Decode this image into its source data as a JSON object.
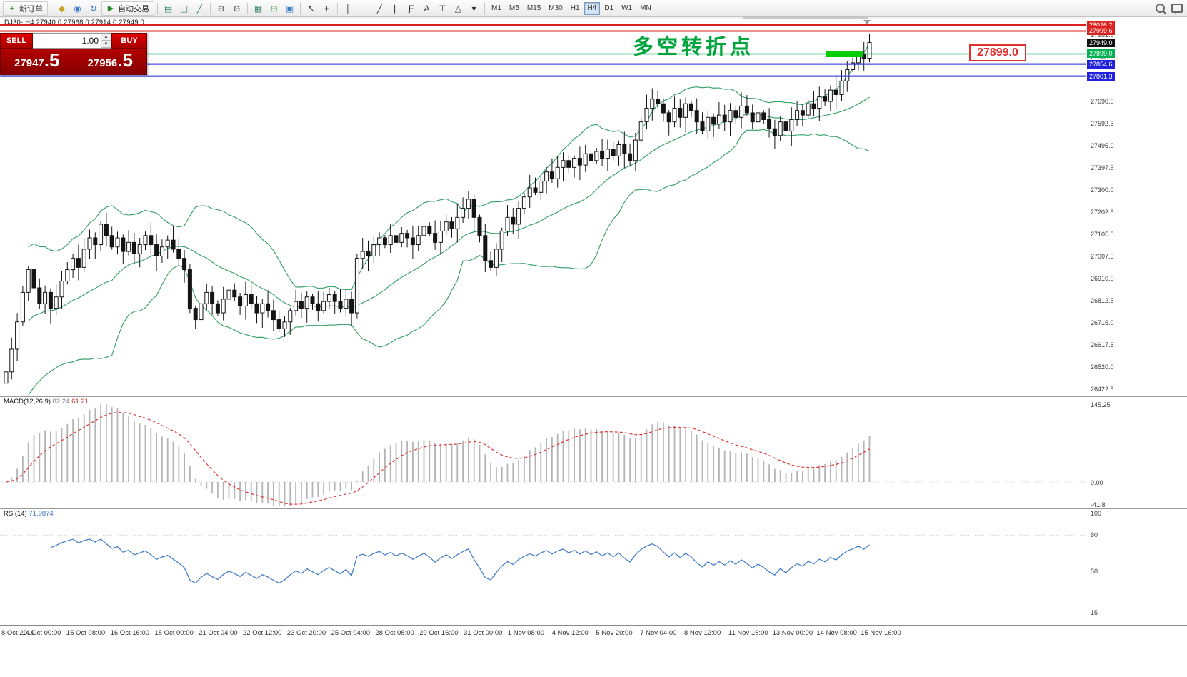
{
  "toolbar": {
    "items": [
      {
        "t": "btn",
        "name": "new-order-button",
        "label": "新订单",
        "icon_name": "new-order-icon",
        "glyph": "+",
        "glyph_color": "#1f8a1f"
      },
      {
        "t": "sep"
      },
      {
        "t": "icon",
        "name": "mql5-market-icon",
        "glyph": "◆",
        "color": "#c9a227"
      },
      {
        "t": "icon",
        "name": "community-icon",
        "glyph": "◉",
        "color": "#3a78c9"
      },
      {
        "t": "icon",
        "name": "refresh-icon",
        "glyph": "↻",
        "color": "#3a78c9"
      },
      {
        "t": "btn",
        "name": "autotrading-button",
        "label": "自动交易",
        "icon_name": "autotrading-play-icon",
        "glyph": "▶",
        "glyph_color": "#1f8a1f"
      },
      {
        "t": "sep"
      },
      {
        "t": "icon",
        "name": "bar-chart-icon",
        "glyph": "▤",
        "color": "#2a7f62"
      },
      {
        "t": "icon",
        "name": "candlestick-chart-icon",
        "glyph": "◫",
        "color": "#2a7f62"
      },
      {
        "t": "icon",
        "name": "line-chart-icon",
        "glyph": "╱",
        "color": "#2a7f62"
      },
      {
        "t": "sep"
      },
      {
        "t": "icon",
        "name": "zoom-in-icon",
        "glyph": "⊕",
        "color": "#333333"
      },
      {
        "t": "icon",
        "name": "zoom-out-icon",
        "glyph": "⊖",
        "color": "#333333"
      },
      {
        "t": "sep"
      },
      {
        "t": "icon",
        "name": "tile-windows-icon",
        "glyph": "▦",
        "color": "#2a7f62"
      },
      {
        "t": "icon",
        "name": "indicators-icon",
        "glyph": "⊞",
        "color": "#1f8a1f"
      },
      {
        "t": "icon",
        "name": "templates-icon",
        "glyph": "▣",
        "color": "#3a78c9"
      },
      {
        "t": "sep"
      },
      {
        "t": "icon",
        "name": "cursor-icon",
        "glyph": "↖",
        "color": "#333333"
      },
      {
        "t": "icon",
        "name": "crosshair-icon",
        "glyph": "+",
        "color": "#333333"
      },
      {
        "t": "sep"
      },
      {
        "t": "icon",
        "name": "vertical-line-icon",
        "glyph": "│",
        "color": "#333333"
      },
      {
        "t": "icon",
        "name": "horizontal-line-icon",
        "glyph": "─",
        "color": "#333333"
      },
      {
        "t": "icon",
        "name": "trendline-icon",
        "glyph": "╱",
        "color": "#333333"
      },
      {
        "t": "icon",
        "name": "channel-icon",
        "glyph": "∥",
        "color": "#333333"
      },
      {
        "t": "icon",
        "name": "fibonacci-icon",
        "glyph": "Ƒ",
        "color": "#333333"
      },
      {
        "t": "icon",
        "name": "text-icon",
        "glyph": "A",
        "color": "#333333"
      },
      {
        "t": "icon",
        "name": "label-icon",
        "glyph": "⊤",
        "color": "#333333"
      },
      {
        "t": "icon",
        "name": "shapes-icon",
        "glyph": "△",
        "color": "#333333"
      },
      {
        "t": "icon",
        "name": "shapes-dropdown-icon",
        "glyph": "▾",
        "color": "#333333"
      },
      {
        "t": "sep"
      }
    ],
    "timeframes": [
      "M1",
      "M5",
      "M15",
      "M30",
      "H1",
      "H4",
      "D1",
      "W1",
      "MN"
    ],
    "active_timeframe": "H4",
    "right_icons": [
      {
        "name": "search-icon",
        "cls": "mag"
      },
      {
        "name": "chat-icon",
        "cls": "bubble"
      }
    ]
  },
  "symbol_info": "DJ30-,H4  27940.0 27968.0 27914.0 27949.0",
  "trade_panel": {
    "sell_label": "SELL",
    "buy_label": "BUY",
    "volume": "1.00",
    "sell_price": {
      "main": "27947",
      "pips": ".5"
    },
    "buy_price": {
      "main": "27956",
      "pips": ".5"
    }
  },
  "annotations": {
    "turning_point": {
      "text": "多空转折点",
      "color": "#00a43c"
    },
    "price_flag": {
      "text": "27899.0",
      "color": "#e03030"
    },
    "green_zone": {
      "color": "#00cc00"
    }
  },
  "chart_data": {
    "type": "candlestick",
    "symbol": "DJ30-",
    "timeframe": "H4",
    "title": "DJ30-,H4",
    "ohlc_info": {
      "open": "27940.0",
      "high": "27968.0",
      "low": "27914.0",
      "close": "27949.0"
    },
    "price_axis": {
      "range": [
        26417.5,
        28026.2
      ],
      "ticks": [
        27982.5,
        27885.0,
        27787.5,
        27690.0,
        27592.5,
        27495.0,
        27397.5,
        27300.0,
        27202.5,
        27105.0,
        27007.5,
        26910.0,
        26812.5,
        26715.0,
        26617.5,
        26520.0,
        26422.5
      ]
    },
    "levels": [
      {
        "price": 28026.2,
        "label": "28026.2",
        "color": "#dd2020",
        "type": "resistance-line"
      },
      {
        "price": 27999.6,
        "label": "27999.6",
        "color": "#dd2020",
        "type": "resistance-line"
      },
      {
        "price": 27949.0,
        "label": "27949.0",
        "color": "#101010",
        "type": "bid-price"
      },
      {
        "price": 27899.0,
        "label": "27899.0",
        "color": "#00b050",
        "type": "support-line"
      },
      {
        "price": 27854.6,
        "label": "27854.6",
        "color": "#2020dd",
        "type": "support-line"
      },
      {
        "price": 27801.3,
        "label": "27801.3",
        "color": "#2020dd",
        "type": "support-line"
      }
    ],
    "candles": {
      "first_open": 26450,
      "closes": [
        26500,
        26600,
        26720,
        26850,
        26950,
        26870,
        26800,
        26850,
        26780,
        26830,
        26900,
        26950,
        27000,
        26960,
        27040,
        27090,
        27060,
        27150,
        27100,
        27050,
        27090,
        27030,
        27070,
        27020,
        27060,
        27100,
        27060,
        27010,
        27050,
        27080,
        27040,
        27000,
        26950,
        26780,
        26730,
        26800,
        26850,
        26800,
        26760,
        26820,
        26860,
        26830,
        26790,
        26840,
        26800,
        26760,
        26800,
        26770,
        26730,
        26690,
        26720,
        26770,
        26810,
        26780,
        26830,
        26800,
        26770,
        26810,
        26840,
        26810,
        26780,
        26820,
        26760,
        27000,
        27030,
        27010,
        27060,
        27090,
        27060,
        27100,
        27070,
        27110,
        27090,
        27060,
        27100,
        27140,
        27110,
        27070,
        27120,
        27160,
        27130,
        27180,
        27220,
        27260,
        27180,
        27100,
        26990,
        26960,
        27040,
        27120,
        27180,
        27150,
        27220,
        27270,
        27310,
        27290,
        27340,
        27380,
        27350,
        27400,
        27430,
        27400,
        27440,
        27410,
        27460,
        27430,
        27470,
        27440,
        27480,
        27450,
        27500,
        27460,
        27430,
        27520,
        27600,
        27660,
        27700,
        27680,
        27640,
        27600,
        27660,
        27620,
        27680,
        27650,
        27600,
        27560,
        27620,
        27590,
        27630,
        27600,
        27650,
        27620,
        27670,
        27640,
        27600,
        27640,
        27610,
        27570,
        27540,
        27600,
        27560,
        27610,
        27650,
        27630,
        27680,
        27660,
        27710,
        27690,
        27740,
        27720,
        27780,
        27830,
        27860,
        27900,
        27880,
        27949
      ]
    },
    "indicators": {
      "bollinger": {
        "period": 20,
        "deviation": 2,
        "color": "#2f9e63"
      },
      "macd": {
        "label": "MACD(12,26,9)",
        "main": "82.24",
        "signal": "61.21",
        "axis_ticks": [
          "145.25",
          "0.00",
          "-41.8"
        ]
      },
      "rsi": {
        "label": "RSI(14)",
        "value": "71.9874",
        "axis_ticks": [
          "100",
          "80",
          "50",
          "15"
        ],
        "levels": [
          80,
          50
        ]
      }
    },
    "x_tick_labels": [
      "8 Oct 2019",
      "14 Oct 00:00",
      "15 Oct 08:00",
      "16 Oct 16:00",
      "18 Oct 00:00",
      "21 Oct 04:00",
      "22 Oct 12:00",
      "23 Oct 20:00",
      "25 Oct 04:00",
      "28 Oct 08:00",
      "29 Oct 16:00",
      "31 Oct 00:00",
      "1 Nov 08:00",
      "4 Nov 12:00",
      "5 Nov 20:00",
      "7 Nov 04:00",
      "8 Nov 12:00",
      "11 Nov 16:00",
      "13 Nov 00:00",
      "14 Nov 08:00",
      "15 Nov 16:00"
    ]
  }
}
